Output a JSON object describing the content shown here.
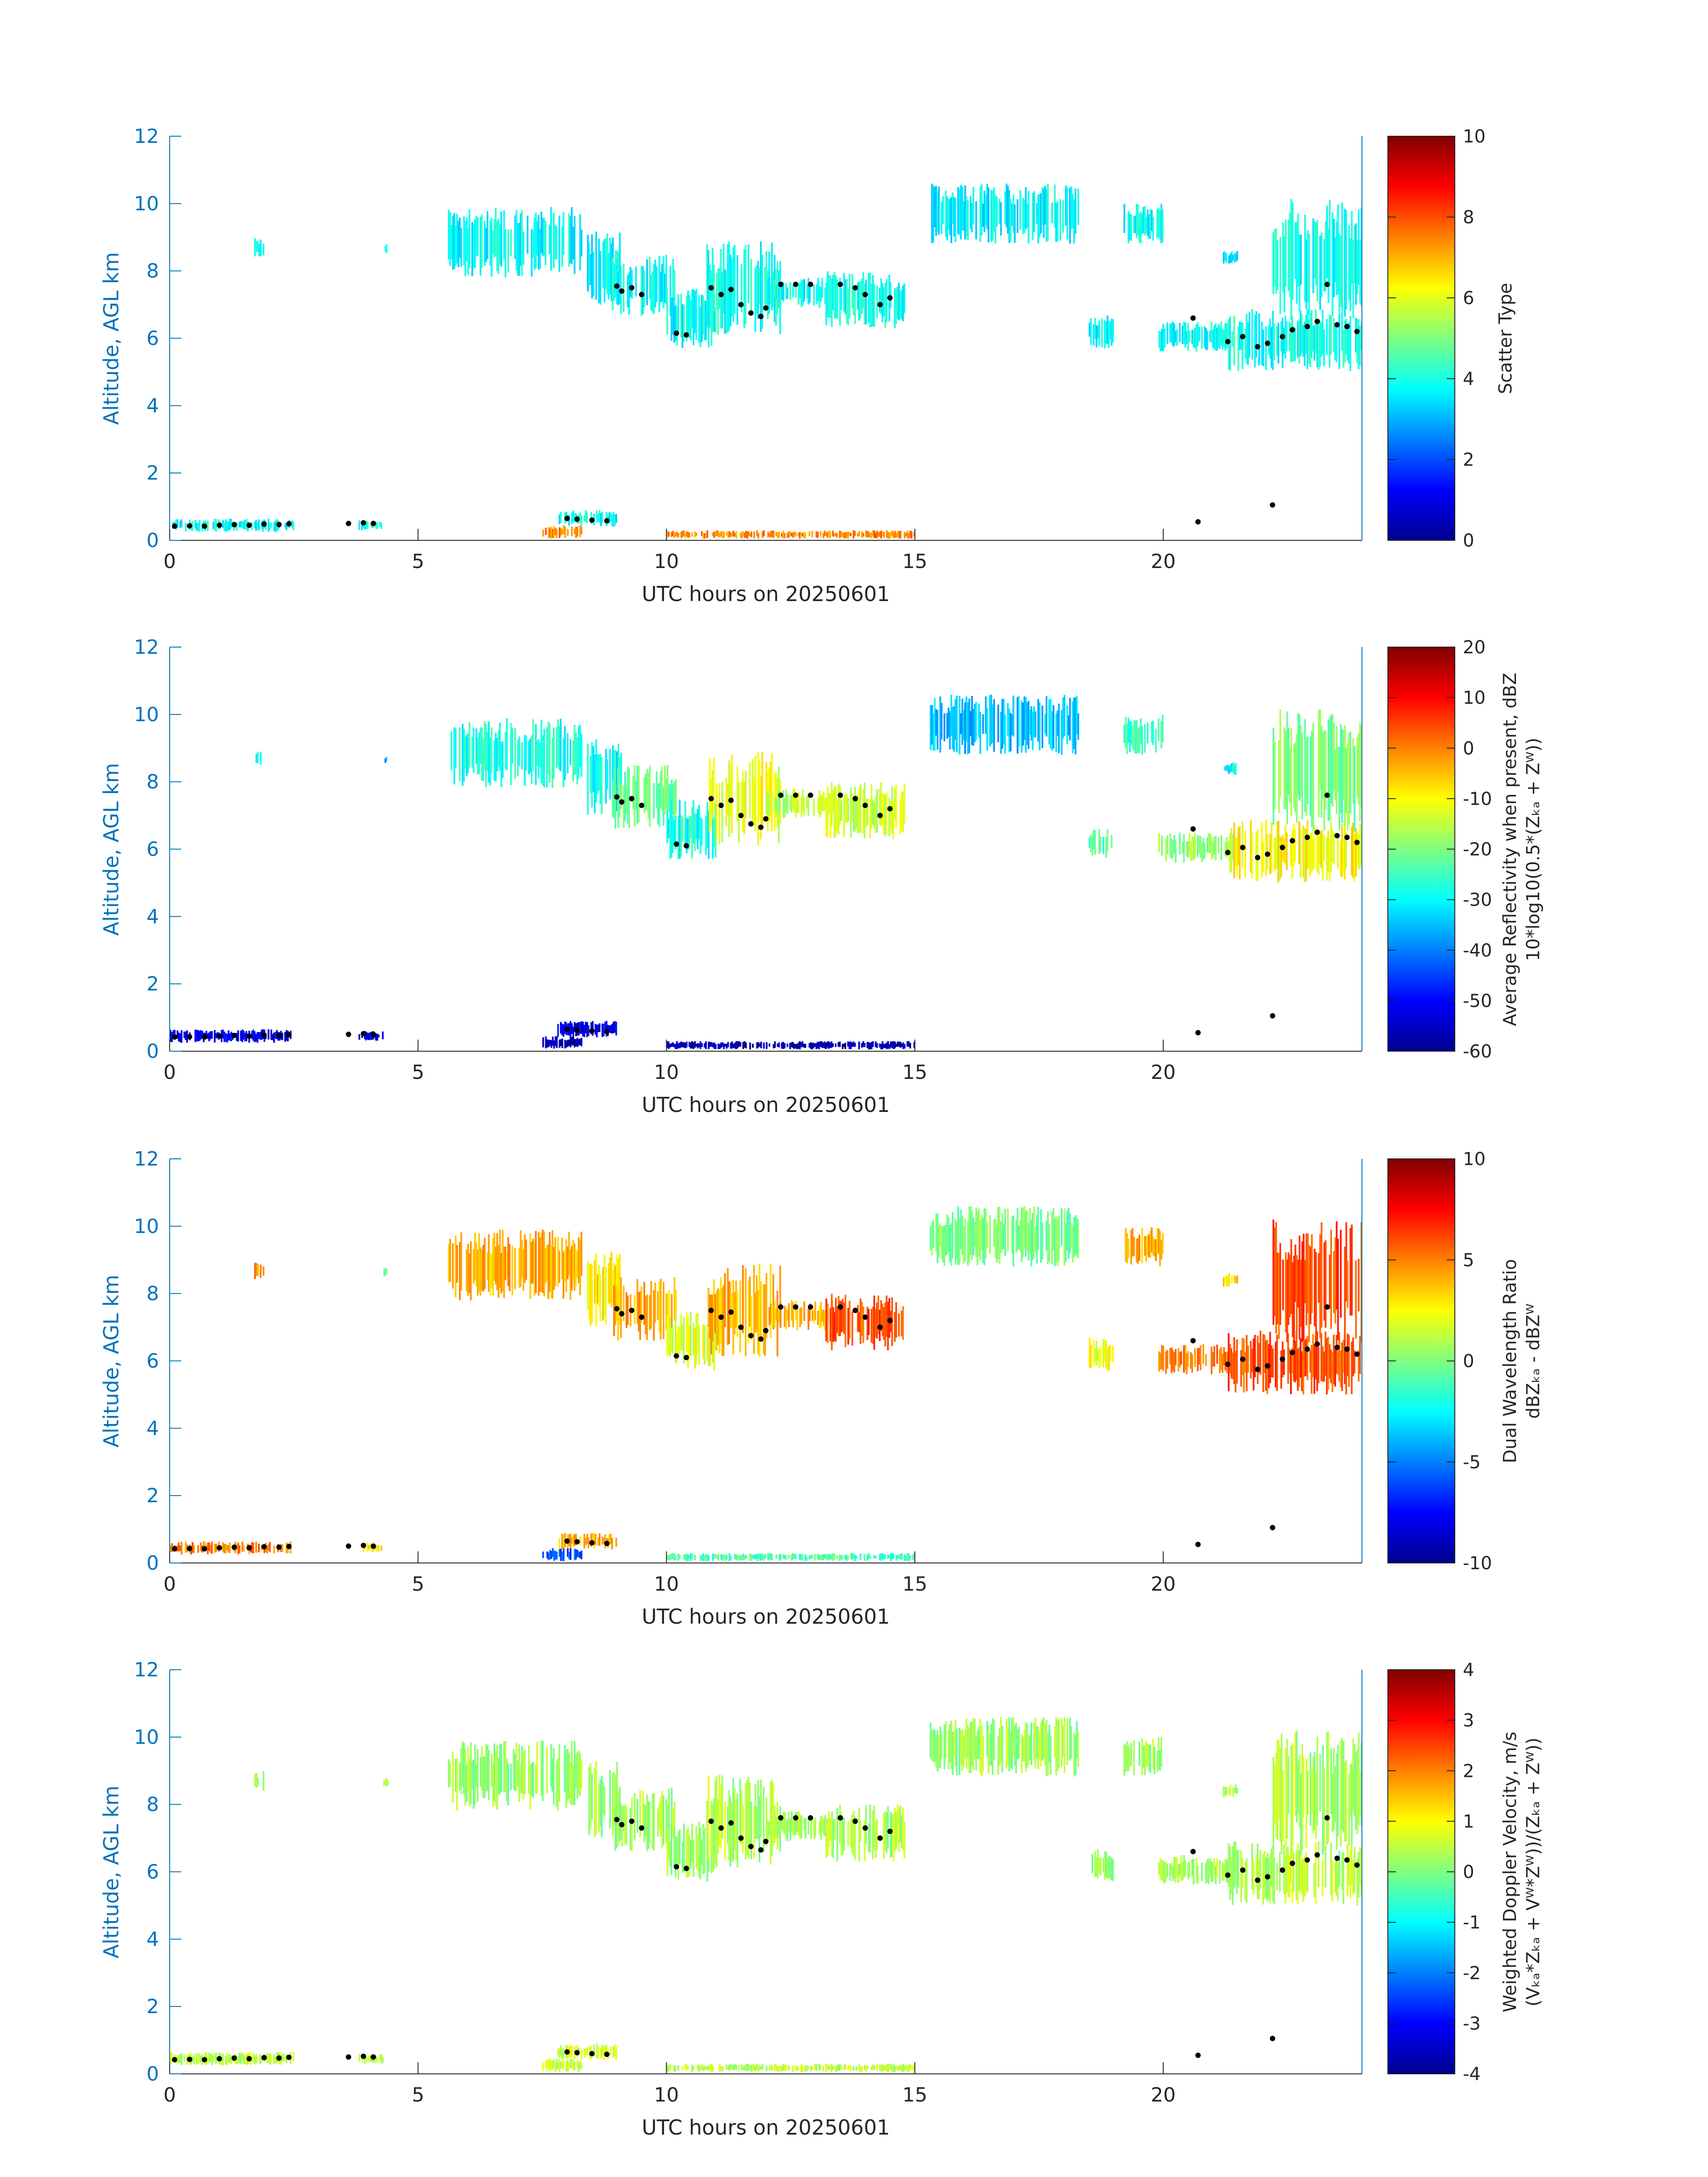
{
  "chart_data": [
    {
      "type": "heatmap",
      "title": "",
      "xlabel": "UTC hours on 20250601",
      "ylabel": "Altitude, AGL km",
      "xlim": [
        0,
        24
      ],
      "ylim": [
        0,
        12
      ],
      "xticks": [
        "0",
        "5",
        "10",
        "15",
        "20"
      ],
      "yticks": [
        "0",
        "2",
        "4",
        "6",
        "8",
        "10",
        "12"
      ],
      "colorbar": {
        "label_lines": [
          "Scatter Type"
        ],
        "ticks": [
          "0",
          "2",
          "4",
          "6",
          "8",
          "10"
        ],
        "range": [
          0,
          10
        ],
        "colormap": "jet"
      }
    },
    {
      "type": "heatmap",
      "title": "",
      "xlabel": "UTC hours on 20250601",
      "ylabel": "Altitude, AGL km",
      "xlim": [
        0,
        24
      ],
      "ylim": [
        0,
        12
      ],
      "xticks": [
        "0",
        "5",
        "10",
        "15",
        "20"
      ],
      "yticks": [
        "0",
        "2",
        "4",
        "6",
        "8",
        "10",
        "12"
      ],
      "colorbar": {
        "label_lines": [
          "Average Reflectivity when present, dBZ",
          "10*log10(0.5*(Zₖₐ + Zᵂ))"
        ],
        "ticks": [
          "-60",
          "-50",
          "-40",
          "-30",
          "-20",
          "-10",
          "0",
          "10",
          "20"
        ],
        "range": [
          -60,
          20
        ],
        "colormap": "jet"
      }
    },
    {
      "type": "heatmap",
      "title": "",
      "xlabel": "UTC hours on 20250601",
      "ylabel": "Altitude, AGL km",
      "xlim": [
        0,
        24
      ],
      "ylim": [
        0,
        12
      ],
      "xticks": [
        "0",
        "5",
        "10",
        "15",
        "20"
      ],
      "yticks": [
        "0",
        "2",
        "4",
        "6",
        "8",
        "10",
        "12"
      ],
      "colorbar": {
        "label_lines": [
          "Dual Wavelength Ratio",
          "dBZₖₐ - dBZᵂ"
        ],
        "ticks": [
          "-10",
          "-5",
          "0",
          "5",
          "10"
        ],
        "range": [
          -10,
          10
        ],
        "colormap": "jet"
      }
    },
    {
      "type": "heatmap",
      "title": "",
      "xlabel": "UTC hours on 20250601",
      "ylabel": "Altitude, AGL km",
      "xlim": [
        0,
        24
      ],
      "ylim": [
        0,
        12
      ],
      "xticks": [
        "0",
        "5",
        "10",
        "15",
        "20"
      ],
      "yticks": [
        "0",
        "2",
        "4",
        "6",
        "8",
        "10",
        "12"
      ],
      "colorbar": {
        "label_lines": [
          "Weighted Doppler Velocity, m/s",
          "(Vₖₐ*Zₖₐ + Vᵂ*Zᵂ))/(Zₖₐ + Zᵂ))"
        ],
        "ticks": [
          "-4",
          "-3",
          "-2",
          "-1",
          "0",
          "1",
          "2",
          "3",
          "4"
        ],
        "range": [
          -4,
          4
        ],
        "colormap": "jet"
      }
    }
  ],
  "colors": {
    "axis": "#0072BD",
    "text": "#262626",
    "scatter_type_cloud": "#2cf5d8",
    "scatter_type_drizzle": "#ff4d00",
    "dwr_cloud": "#f6e32a",
    "velocity_cloud": "#8ff07a",
    "cloud_top_marker": "#000000"
  },
  "regions": [
    {
      "x0": 1.7,
      "x1": 1.9,
      "y0": 8.4,
      "y1": 9.0,
      "s": [
        3.7,
        -28,
        5,
        0.4
      ]
    },
    {
      "x0": 4.3,
      "x1": 4.4,
      "y0": 8.5,
      "y1": 8.8,
      "s": [
        3.7,
        -38,
        0,
        0.4
      ]
    },
    {
      "x0": 5.6,
      "x1": 8.3,
      "y0": 7.8,
      "y1": 9.9,
      "s": [
        3.8,
        -28,
        4,
        0.2
      ]
    },
    {
      "x0": 8.4,
      "x1": 9.1,
      "y0": 7.0,
      "y1": 9.3,
      "s": [
        3.8,
        -30,
        3,
        0.2
      ]
    },
    {
      "x0": 8.9,
      "x1": 10.2,
      "y0": 6.6,
      "y1": 8.5,
      "s": [
        3.8,
        -22,
        4,
        0.3
      ]
    },
    {
      "x0": 10.0,
      "x1": 11.0,
      "y0": 5.7,
      "y1": 7.5,
      "s": [
        3.8,
        -28,
        2,
        0.2
      ]
    },
    {
      "x0": 10.8,
      "x1": 12.3,
      "y0": 6.1,
      "y1": 8.9,
      "s": [
        3.9,
        -12,
        4,
        0.4
      ]
    },
    {
      "x0": 12.0,
      "x1": 13.4,
      "y0": 6.9,
      "y1": 7.8,
      "s": [
        3.9,
        -16,
        4,
        0.3
      ]
    },
    {
      "x0": 13.2,
      "x1": 14.8,
      "y0": 6.3,
      "y1": 8.0,
      "s": [
        3.9,
        -14,
        6,
        0.4
      ]
    },
    {
      "x0": 15.3,
      "x1": 18.3,
      "y0": 8.8,
      "y1": 10.6,
      "s": [
        3.7,
        -35,
        0,
        0.2
      ]
    },
    {
      "x0": 18.5,
      "x1": 19.0,
      "y0": 5.7,
      "y1": 6.7,
      "s": [
        3.7,
        -25,
        2,
        0.2
      ]
    },
    {
      "x0": 19.2,
      "x1": 20.0,
      "y0": 8.8,
      "y1": 10.0,
      "s": [
        3.7,
        -25,
        4,
        0.2
      ]
    },
    {
      "x0": 19.9,
      "x1": 21.4,
      "y0": 5.6,
      "y1": 6.5,
      "s": [
        3.8,
        -18,
        5,
        0.3
      ]
    },
    {
      "x0": 21.3,
      "x1": 24.0,
      "y0": 5.0,
      "y1": 6.9,
      "s": [
        3.9,
        -10,
        6,
        0.4
      ]
    },
    {
      "x0": 22.2,
      "x1": 24.0,
      "y0": 6.5,
      "y1": 10.2,
      "s": [
        3.9,
        -20,
        6,
        0.3
      ]
    },
    {
      "x0": 21.2,
      "x1": 21.5,
      "y0": 8.2,
      "y1": 8.6,
      "s": [
        3.7,
        -30,
        3,
        0.3
      ]
    },
    {
      "x0": 0.0,
      "x1": 2.5,
      "y0": 0.25,
      "y1": 0.65,
      "s": [
        3.8,
        -52,
        5,
        0.5
      ]
    },
    {
      "x0": 3.8,
      "x1": 4.3,
      "y0": 0.3,
      "y1": 0.6,
      "s": [
        3.8,
        -52,
        3,
        0.5
      ]
    },
    {
      "x0": 7.5,
      "x1": 8.3,
      "y0": 0.05,
      "y1": 0.45,
      "s": [
        7.4,
        -55,
        -6,
        0.6
      ]
    },
    {
      "x0": 7.8,
      "x1": 9.0,
      "y0": 0.4,
      "y1": 0.9,
      "s": [
        3.8,
        -52,
        4,
        0.7
      ]
    },
    {
      "x0": 10.0,
      "x1": 15.0,
      "y0": 0.05,
      "y1": 0.3,
      "s": [
        7.4,
        -56,
        -1,
        0.5
      ]
    }
  ],
  "cloud_top_markers": [
    [
      0.1,
      0.42
    ],
    [
      0.4,
      0.43
    ],
    [
      0.7,
      0.42
    ],
    [
      1.0,
      0.45
    ],
    [
      1.3,
      0.47
    ],
    [
      1.6,
      0.45
    ],
    [
      1.9,
      0.48
    ],
    [
      2.2,
      0.47
    ],
    [
      2.4,
      0.49
    ],
    [
      3.6,
      0.5
    ],
    [
      3.9,
      0.52
    ],
    [
      4.1,
      0.5
    ],
    [
      8.0,
      0.65
    ],
    [
      8.2,
      0.63
    ],
    [
      8.5,
      0.6
    ],
    [
      8.8,
      0.58
    ],
    [
      9.0,
      7.55
    ],
    [
      9.1,
      7.4
    ],
    [
      9.3,
      7.5
    ],
    [
      9.5,
      7.3
    ],
    [
      10.2,
      6.15
    ],
    [
      10.4,
      6.1
    ],
    [
      10.9,
      7.5
    ],
    [
      11.1,
      7.3
    ],
    [
      11.3,
      7.45
    ],
    [
      11.5,
      7.0
    ],
    [
      11.7,
      6.75
    ],
    [
      11.9,
      6.65
    ],
    [
      12.0,
      6.9
    ],
    [
      12.3,
      7.6
    ],
    [
      12.6,
      7.6
    ],
    [
      12.9,
      7.6
    ],
    [
      13.5,
      7.6
    ],
    [
      13.8,
      7.5
    ],
    [
      14.0,
      7.3
    ],
    [
      14.3,
      7.0
    ],
    [
      14.5,
      7.2
    ],
    [
      20.6,
      6.6
    ],
    [
      20.7,
      0.55
    ],
    [
      21.3,
      5.9
    ],
    [
      21.6,
      6.05
    ],
    [
      21.9,
      5.75
    ],
    [
      22.1,
      5.85
    ],
    [
      22.2,
      1.05
    ],
    [
      22.4,
      6.05
    ],
    [
      22.6,
      6.25
    ],
    [
      22.9,
      6.35
    ],
    [
      23.1,
      6.5
    ],
    [
      23.3,
      7.6
    ],
    [
      23.5,
      6.4
    ],
    [
      23.7,
      6.35
    ],
    [
      23.9,
      6.2
    ]
  ]
}
